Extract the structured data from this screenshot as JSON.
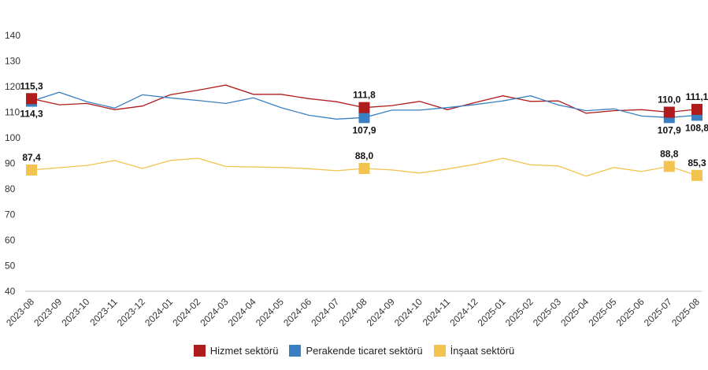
{
  "chart_data": {
    "type": "line",
    "categories": [
      "2023-08",
      "2023-09",
      "2023-10",
      "2023-11",
      "2023-12",
      "2024-01",
      "2024-02",
      "2024-03",
      "2024-04",
      "2024-05",
      "2024-06",
      "2024-07",
      "2024-08",
      "2024-09",
      "2024-10",
      "2024-11",
      "2024-12",
      "2025-01",
      "2025-02",
      "2025-03",
      "2025-04",
      "2025-05",
      "2025-06",
      "2025-07",
      "2025-08"
    ],
    "ylim": [
      40,
      140
    ],
    "yticks": [
      40,
      50,
      60,
      70,
      80,
      90,
      100,
      110,
      120,
      130,
      140
    ],
    "grid": false,
    "legend_position": "bottom",
    "series": [
      {
        "name": "Hizmet sektörü",
        "color": "#b01c1c",
        "values": [
          115.3,
          112.9,
          113.4,
          111.0,
          112.4,
          116.8,
          118.6,
          120.6,
          117.0,
          117.0,
          115.3,
          114.1,
          111.8,
          112.6,
          114.2,
          111.0,
          113.8,
          116.4,
          114.2,
          114.4,
          109.6,
          110.6,
          111.0,
          110.0,
          111.1
        ]
      },
      {
        "name": "Perakende ticaret sektörü",
        "color": "#3a7fc1",
        "values": [
          114.3,
          117.8,
          114.1,
          111.6,
          116.8,
          115.6,
          114.6,
          113.4,
          115.6,
          111.8,
          108.8,
          107.3,
          107.9,
          110.8,
          110.8,
          111.8,
          113.0,
          114.4,
          116.4,
          112.8,
          110.6,
          111.3,
          108.5,
          107.9,
          108.8
        ]
      },
      {
        "name": "İnşaat sektörü",
        "color": "#f2c34e",
        "values": [
          87.4,
          88.3,
          89.2,
          91.1,
          88.0,
          91.1,
          92.0,
          88.8,
          88.6,
          88.4,
          87.9,
          87.1,
          88.0,
          87.4,
          86.2,
          87.8,
          89.6,
          92.0,
          89.4,
          89.0,
          85.0,
          88.4,
          86.8,
          88.8,
          85.3
        ]
      }
    ],
    "annotations": [
      {
        "series": 0,
        "index": 0,
        "label": "115,3",
        "pos": "above"
      },
      {
        "series": 1,
        "index": 0,
        "label": "114,3",
        "pos": "below"
      },
      {
        "series": 2,
        "index": 0,
        "label": "87,4",
        "pos": "above"
      },
      {
        "series": 0,
        "index": 12,
        "label": "111,8",
        "pos": "above"
      },
      {
        "series": 1,
        "index": 12,
        "label": "107,9",
        "pos": "below"
      },
      {
        "series": 2,
        "index": 12,
        "label": "88,0",
        "pos": "above"
      },
      {
        "series": 0,
        "index": 23,
        "label": "110,0",
        "pos": "above"
      },
      {
        "series": 1,
        "index": 23,
        "label": "107,9",
        "pos": "below"
      },
      {
        "series": 2,
        "index": 23,
        "label": "88,8",
        "pos": "above"
      },
      {
        "series": 0,
        "index": 24,
        "label": "111,1",
        "pos": "above"
      },
      {
        "series": 1,
        "index": 24,
        "label": "108,8",
        "pos": "below"
      },
      {
        "series": 2,
        "index": 24,
        "label": "85,3",
        "pos": "above"
      }
    ]
  }
}
